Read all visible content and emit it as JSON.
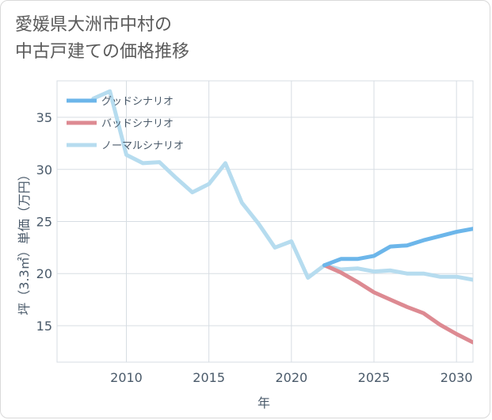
{
  "title_line1": "愛媛県大洲市中村の",
  "title_line2": "中古戸建ての価格推移",
  "chart_data": {
    "type": "line",
    "title": "愛媛県大洲市中村の中古戸建ての価格推移",
    "xlabel": "年",
    "ylabel": "坪（3.3㎡）単価（万円）",
    "xlim": [
      2005.8,
      2031
    ],
    "ylim": [
      11.5,
      38.5
    ],
    "xticks": [
      2010,
      2015,
      2020,
      2025,
      2030
    ],
    "yticks": [
      15,
      20,
      25,
      30,
      35
    ],
    "grid": true,
    "legend_position": "top-left",
    "series": [
      {
        "name": "グッドシナリオ",
        "color": "#6cb6ea",
        "x": [
          2022,
          2023,
          2024,
          2025,
          2026,
          2027,
          2028,
          2029,
          2030,
          2031
        ],
        "y": [
          20.8,
          21.4,
          21.4,
          21.7,
          22.6,
          22.7,
          23.2,
          23.6,
          24.0,
          24.3
        ]
      },
      {
        "name": "バッドシナリオ",
        "color": "#dd8a92",
        "x": [
          2022,
          2023,
          2024,
          2025,
          2026,
          2027,
          2028,
          2029,
          2030,
          2031
        ],
        "y": [
          20.8,
          20.1,
          19.2,
          18.2,
          17.5,
          16.8,
          16.2,
          15.1,
          14.2,
          13.4
        ]
      },
      {
        "name": "ノーマルシナリオ",
        "color": "#b6dcef",
        "x": [
          2008,
          2009,
          2010,
          2011,
          2012,
          2013,
          2014,
          2015,
          2016,
          2017,
          2018,
          2019,
          2020,
          2021,
          2022,
          2023,
          2024,
          2025,
          2026,
          2027,
          2028,
          2029,
          2030,
          2031
        ],
        "y": [
          36.8,
          37.5,
          31.4,
          30.6,
          30.7,
          29.2,
          27.8,
          28.6,
          30.6,
          26.8,
          24.8,
          22.5,
          23.1,
          19.6,
          20.8,
          20.4,
          20.5,
          20.2,
          20.3,
          20.0,
          20.0,
          19.7,
          19.7,
          19.4
        ]
      }
    ]
  }
}
